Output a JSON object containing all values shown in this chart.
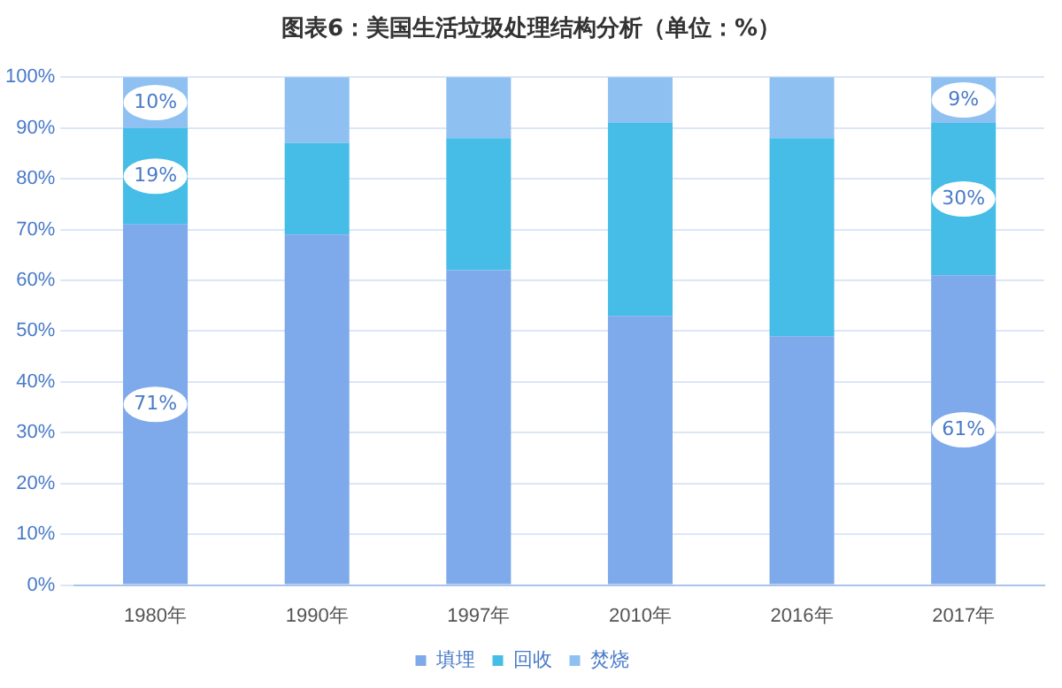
{
  "chart_data": {
    "type": "bar",
    "title": "图表6：美国生活垃圾处理结构分析（单位：%）",
    "stacked": true,
    "categories": [
      "1980年",
      "1990年",
      "1997年",
      "2010年",
      "2016年",
      "2017年"
    ],
    "series": [
      {
        "name": "填埋",
        "color": "#7ea9ea",
        "values": [
          71,
          69,
          62,
          53,
          49,
          61
        ],
        "value_labels": [
          "71%",
          null,
          null,
          null,
          null,
          "61%"
        ]
      },
      {
        "name": "回收",
        "color": "#45bde6",
        "values": [
          19,
          18,
          26,
          38,
          39,
          30
        ],
        "value_labels": [
          "19%",
          null,
          null,
          null,
          null,
          "30%"
        ]
      },
      {
        "name": "焚烧",
        "color": "#8ec0f2",
        "values": [
          10,
          13,
          12,
          9,
          12,
          9
        ],
        "value_labels": [
          "10%",
          null,
          null,
          null,
          null,
          "9%"
        ]
      }
    ],
    "ylim": [
      0,
      100
    ],
    "yticks": [
      {
        "value": 0,
        "label": "0%"
      },
      {
        "value": 10,
        "label": "10%"
      },
      {
        "value": 20,
        "label": "20%"
      },
      {
        "value": 30,
        "label": "30%"
      },
      {
        "value": 40,
        "label": "40%"
      },
      {
        "value": 50,
        "label": "50%"
      },
      {
        "value": 60,
        "label": "60%"
      },
      {
        "value": 70,
        "label": "70%"
      },
      {
        "value": 80,
        "label": "80%"
      },
      {
        "value": 90,
        "label": "90%"
      },
      {
        "value": 100,
        "label": "100%"
      }
    ],
    "grid": "y",
    "legend": "bottom"
  }
}
